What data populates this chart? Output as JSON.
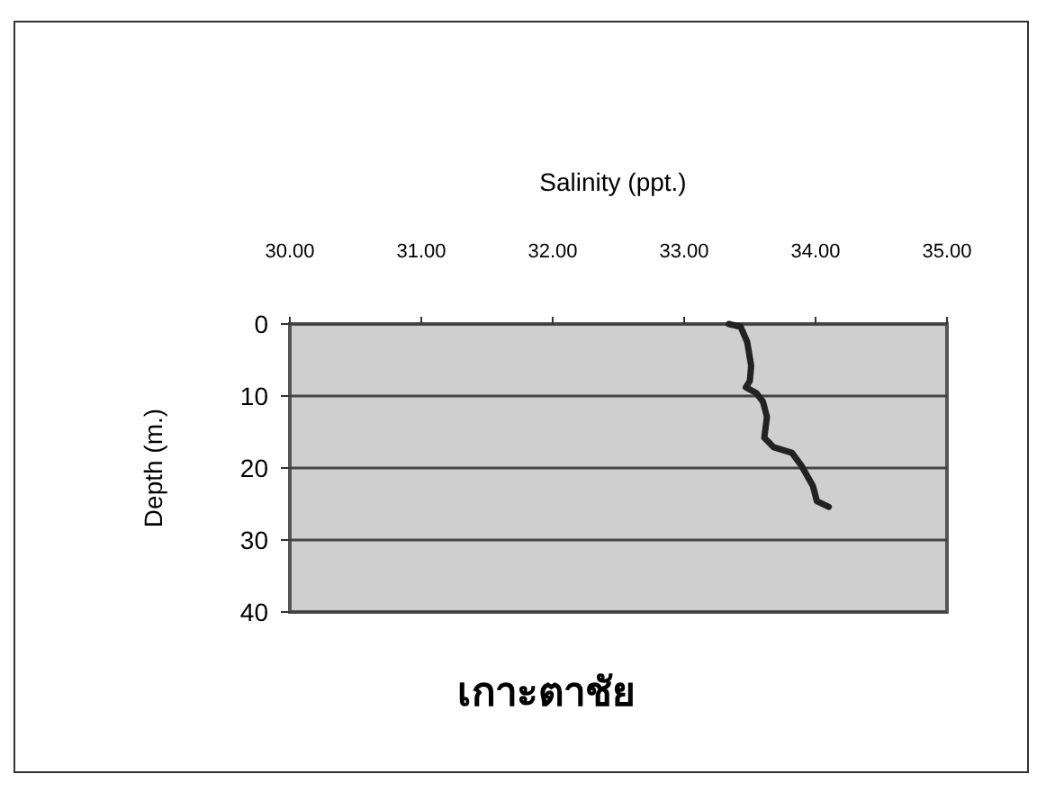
{
  "chart_data": {
    "type": "line",
    "title": "เกาะตาชัย",
    "xlabel": "Salinity (ppt.)",
    "ylabel": "Depth (m.)",
    "xlim": [
      30,
      35
    ],
    "xticks": [
      {
        "value": 30,
        "label": "30.00"
      },
      {
        "value": 31,
        "label": "31.00"
      },
      {
        "value": 32,
        "label": "32.00"
      },
      {
        "value": 33,
        "label": "33.00"
      },
      {
        "value": 34,
        "label": "34.00"
      },
      {
        "value": 35,
        "label": "35.00"
      }
    ],
    "ylim": [
      40,
      0
    ],
    "yticks": [
      0,
      10,
      20,
      30,
      40
    ],
    "grid": "y",
    "marker": "none",
    "line_style": "solid",
    "series": [
      {
        "color": "#222222",
        "x": [
          33.34,
          33.43,
          33.48,
          33.51,
          33.5,
          33.47,
          33.55,
          33.6,
          33.63,
          33.61,
          33.68,
          33.82,
          33.89,
          33.98,
          34.01,
          34.1
        ],
        "values": [
          0,
          0.4,
          2.5,
          5.8,
          7.9,
          8.8,
          9.6,
          10.8,
          12.9,
          15.8,
          17.1,
          17.9,
          19.6,
          22.5,
          24.6,
          25.4
        ]
      }
    ]
  }
}
